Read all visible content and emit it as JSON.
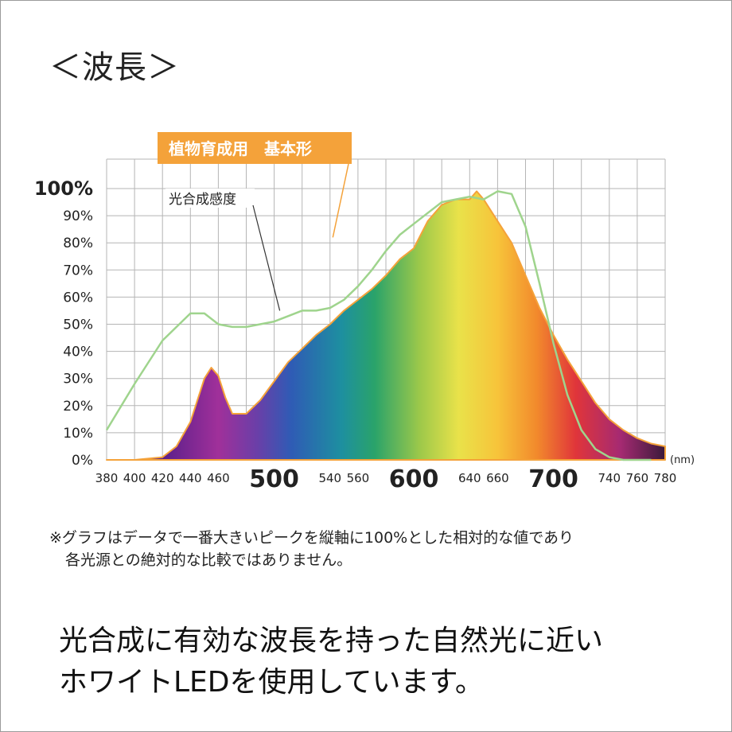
{
  "heading": "＜波長＞",
  "chart_data": {
    "type": "area",
    "xunit": "(nm)",
    "xlim": [
      380,
      780
    ],
    "ylim": [
      0,
      100
    ],
    "grid": true,
    "x_tick_labels": [
      "380",
      "400",
      "420",
      "440",
      "460",
      "500",
      "540",
      "560",
      "600",
      "640",
      "660",
      "700",
      "740",
      "760",
      "780"
    ],
    "x_tick_positions": [
      380,
      400,
      420,
      440,
      460,
      500,
      540,
      560,
      600,
      640,
      660,
      700,
      740,
      760,
      780
    ],
    "x_big_ticks": [
      "500",
      "600",
      "700"
    ],
    "y_tick_labels": [
      "0%",
      "10%",
      "20%",
      "30%",
      "40%",
      "50%",
      "60%",
      "70%",
      "80%",
      "90%",
      "100%"
    ],
    "series": [
      {
        "name": "植物育成用　基本形",
        "color": "#f4a23a",
        "x": [
          380,
          400,
          420,
          430,
          440,
          450,
          455,
          460,
          465,
          470,
          480,
          490,
          500,
          510,
          520,
          530,
          540,
          550,
          560,
          570,
          580,
          590,
          600,
          610,
          620,
          630,
          640,
          645,
          650,
          660,
          670,
          680,
          690,
          700,
          710,
          720,
          730,
          740,
          750,
          760,
          770,
          780
        ],
        "values": [
          0,
          0,
          1,
          5,
          14,
          30,
          34,
          31,
          23,
          17,
          17,
          22,
          29,
          36,
          41,
          46,
          50,
          55,
          59,
          63,
          68,
          74,
          78,
          88,
          94,
          96,
          96,
          99,
          96,
          88,
          80,
          68,
          56,
          46,
          37,
          29,
          21,
          15,
          11,
          8,
          6,
          5
        ]
      },
      {
        "name": "光合成感度",
        "color": "#9fd48d",
        "x": [
          380,
          400,
          420,
          440,
          450,
          460,
          470,
          480,
          500,
          510,
          520,
          530,
          540,
          550,
          560,
          570,
          580,
          590,
          600,
          610,
          620,
          630,
          640,
          650,
          660,
          670,
          680,
          690,
          700,
          710,
          720,
          730,
          740,
          750,
          760,
          770
        ],
        "values": [
          11,
          28,
          44,
          54,
          54,
          50,
          49,
          49,
          51,
          53,
          55,
          55,
          56,
          59,
          64,
          70,
          77,
          83,
          87,
          91,
          95,
          96,
          97,
          96,
          99,
          98,
          86,
          65,
          43,
          24,
          11,
          4,
          1,
          0,
          0,
          0
        ]
      }
    ]
  },
  "note": {
    "line1": "※グラフはデータで一番大きいピークを縦軸に100%とした相対的な値であり",
    "line2": "各光源との絶対的な比較ではありません。"
  },
  "footer": {
    "line1": "光合成に有効な波長を持った自然光に近い",
    "line2": "ホワイトLEDを使用しています。"
  },
  "colors": {
    "grid": "#b5b5b5",
    "label_box": "#f4a23a",
    "photosynthesis_line": "#9fd48d"
  }
}
